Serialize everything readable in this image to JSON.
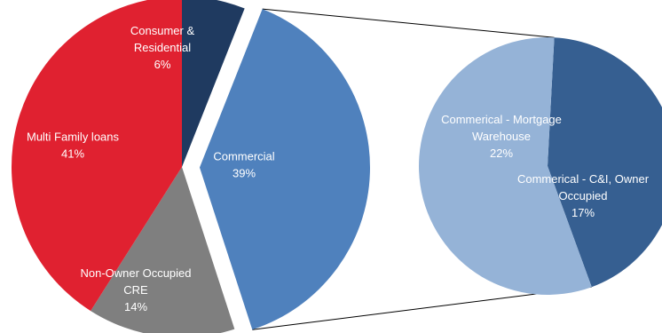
{
  "chart_data": {
    "type": "pie",
    "title": "",
    "main_pie": {
      "slices": [
        {
          "label_lines": [
            "Consumer &",
            "Residential"
          ],
          "percent_label": "6%",
          "value": 6,
          "color": "#1f3a60"
        },
        {
          "label_lines": [
            "Commercial"
          ],
          "percent_label": "39%",
          "value": 39,
          "color": "#4f81bd",
          "exploded": true
        },
        {
          "label_lines": [
            "Non-Owner Occupied",
            "CRE"
          ],
          "percent_label": "14%",
          "value": 14,
          "color": "#7f7f7f"
        },
        {
          "label_lines": [
            "Multi Family loans"
          ],
          "percent_label": "41%",
          "value": 41,
          "color": "#e02130"
        }
      ]
    },
    "breakout_pie": {
      "parent": "Commercial",
      "slices": [
        {
          "label_lines": [
            "Commerical  - C&I, Owner",
            "Occupied"
          ],
          "percent_label": "17%",
          "value": 17,
          "color": "#365f91"
        },
        {
          "label_lines": [
            "Commerical  - Mortgage",
            "Warehouse"
          ],
          "percent_label": "22%",
          "value": 22,
          "color": "#95b3d7"
        }
      ]
    },
    "connector_color": "#000000",
    "legend": "none"
  }
}
